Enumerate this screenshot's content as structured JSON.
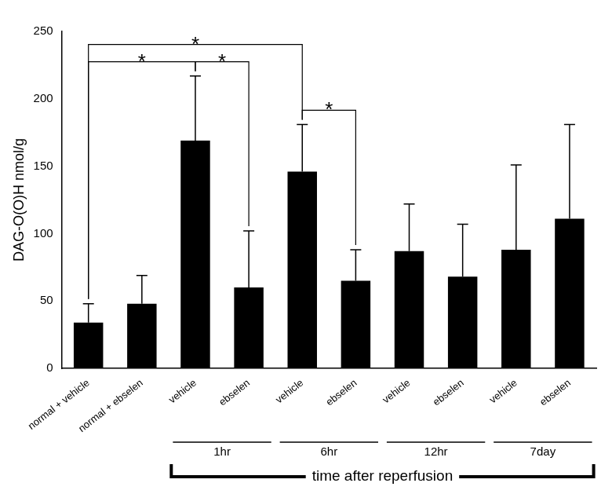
{
  "chart_data": {
    "type": "bar",
    "categories": [
      "normal + vehicle",
      "normal + ebselen",
      "vehicle",
      "ebselen",
      "vehicle",
      "ebselen",
      "vehicle",
      "ebselen",
      "vehicle",
      "ebselen"
    ],
    "values": [
      34,
      48,
      169,
      60,
      146,
      65,
      87,
      68,
      88,
      111
    ],
    "errors": [
      14,
      21,
      48,
      42,
      35,
      23,
      35,
      39,
      63,
      70
    ],
    "color": "#000000",
    "ylabel": "DAG-O(O)H nmol/g",
    "ylim": [
      0,
      250
    ],
    "yticks": [
      0,
      50,
      100,
      150,
      200,
      250
    ],
    "grid": false,
    "groups": [
      {
        "label": "1hr",
        "from": 2,
        "to": 3
      },
      {
        "label": "6hr",
        "from": 4,
        "to": 5
      },
      {
        "label": "12hr",
        "from": 6,
        "to": 7
      },
      {
        "label": "7day",
        "from": 8,
        "to": 9
      }
    ],
    "group_title": {
      "label": "time after reperfusion",
      "from": 2,
      "to": 9
    },
    "significance": [
      {
        "from": 0,
        "to": 2,
        "label": "*"
      },
      {
        "from": 2,
        "to": 3,
        "label": "*"
      },
      {
        "from": 0,
        "to": 4,
        "label": "*"
      },
      {
        "from": 4,
        "to": 5,
        "label": "*"
      }
    ]
  }
}
